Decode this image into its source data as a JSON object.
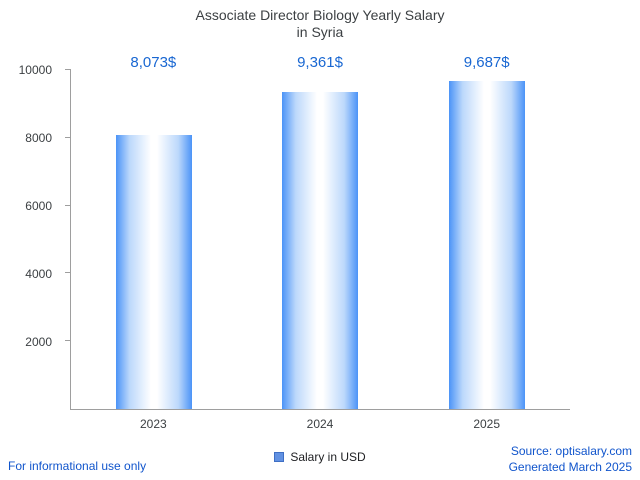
{
  "chart_data": {
    "type": "bar",
    "title": "Associate Director Biology Yearly Salary",
    "subtitle": "in Syria",
    "categories": [
      "2023",
      "2024",
      "2025"
    ],
    "values": [
      8073,
      9361,
      9687
    ],
    "value_labels": [
      "8,073$",
      "9,361$",
      "9,687$"
    ],
    "ylim": [
      0,
      10000
    ],
    "yticks": [
      2000,
      4000,
      6000,
      8000,
      10000
    ],
    "legend": "Salary in USD",
    "grid": false,
    "legend_position": "bottom-center",
    "colors": {
      "accent": "#1967d2",
      "link": "#1155cc",
      "bar_edge": "#4b93f7",
      "axis": "#9e9e9e"
    }
  },
  "footer": {
    "disclaimer": "For informational use only",
    "source": "Source: optisalary.com",
    "generated": "Generated March 2025"
  }
}
